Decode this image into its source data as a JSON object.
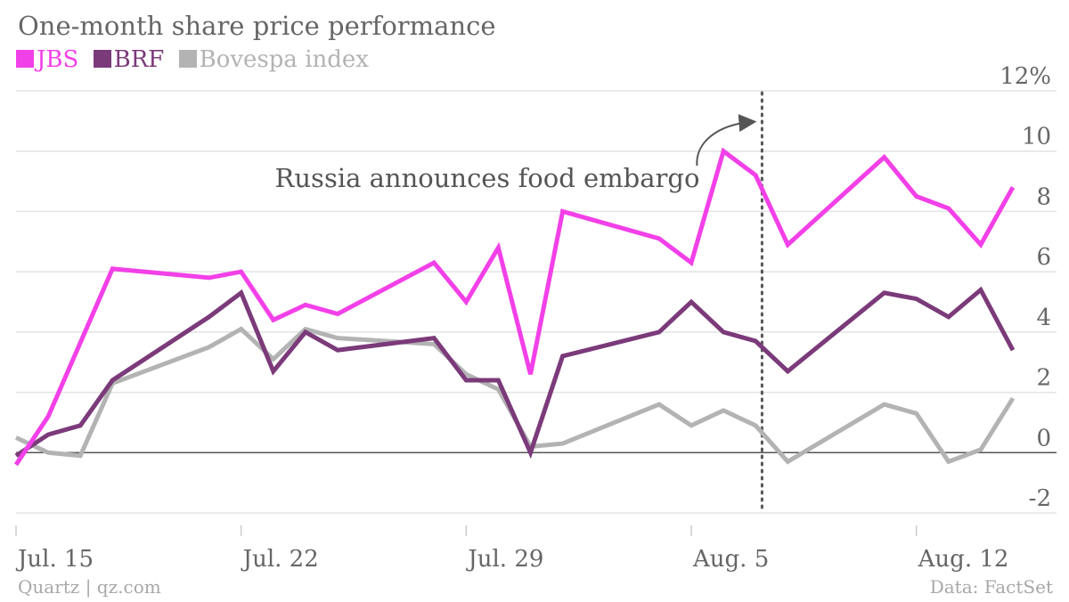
{
  "chart_data": {
    "type": "line",
    "title": "One-month share price performance",
    "y_unit_label": "12%",
    "ylim": [
      -2,
      12
    ],
    "y_ticks": [
      12,
      10,
      8,
      6,
      4,
      2,
      0,
      -2
    ],
    "y_tick_labels": [
      "12%",
      "10",
      "8",
      "6",
      "4",
      "2",
      "0",
      "-2"
    ],
    "x_tick_labels": [
      "Jul. 15",
      "Jul. 22",
      "Jul. 29",
      "Aug. 5",
      "Aug. 12"
    ],
    "x_tick_positions": [
      0,
      7,
      14,
      21,
      28
    ],
    "x_range": [
      0,
      31.5
    ],
    "x_unit": "days from Jul. 15",
    "grid": true,
    "legend_position": "top-left",
    "series": [
      {
        "name": "JBS",
        "color": "#f240e8",
        "x": [
          0,
          1,
          3,
          6,
          7,
          8,
          9,
          10,
          13,
          14,
          15,
          16,
          17,
          20,
          21,
          22,
          23,
          24,
          27,
          28,
          29,
          30,
          31
        ],
        "values": [
          -0.4,
          1.2,
          6.1,
          5.8,
          6.0,
          4.4,
          4.9,
          4.6,
          6.3,
          5.0,
          6.8,
          2.6,
          8.0,
          7.1,
          6.3,
          10.0,
          9.2,
          6.9,
          9.8,
          8.5,
          8.1,
          6.9,
          8.8
        ]
      },
      {
        "name": "BRF",
        "color": "#7b3a7a",
        "x": [
          0,
          1,
          2,
          3,
          6,
          7,
          8,
          9,
          10,
          13,
          14,
          15,
          16,
          17,
          20,
          21,
          22,
          23,
          24,
          27,
          28,
          29,
          30,
          31
        ],
        "values": [
          -0.1,
          0.6,
          0.9,
          2.4,
          4.5,
          5.3,
          2.7,
          4.0,
          3.4,
          3.8,
          2.4,
          2.4,
          0.0,
          3.2,
          4.0,
          5.0,
          4.0,
          3.7,
          2.7,
          5.3,
          5.1,
          4.5,
          5.4,
          3.4
        ]
      },
      {
        "name": "Bovespa index",
        "color": "#b3b3b3",
        "x": [
          0,
          1,
          2,
          3,
          6,
          7,
          8,
          9,
          10,
          13,
          14,
          15,
          16,
          17,
          20,
          21,
          22,
          23,
          24,
          27,
          28,
          29,
          30,
          31
        ],
        "values": [
          0.5,
          0.0,
          -0.1,
          2.3,
          3.5,
          4.1,
          3.1,
          4.1,
          3.8,
          3.6,
          2.6,
          2.1,
          0.2,
          0.3,
          1.6,
          0.9,
          1.4,
          0.9,
          -0.3,
          1.6,
          1.3,
          -0.3,
          0.1,
          1.8
        ]
      }
    ],
    "annotation": {
      "text": "Russia announces food embargo",
      "x": 23.2
    }
  },
  "legend": {
    "items": [
      {
        "label": "JBS",
        "color": "#f240e8"
      },
      {
        "label": "BRF",
        "color": "#7b3a7a"
      },
      {
        "label": "Bovespa index",
        "color": "#b3b3b3"
      }
    ]
  },
  "footer": {
    "source_left": "Quartz | qz.com",
    "source_right": "Data: FactSet"
  },
  "colors": {
    "grid": "#e3e3e3",
    "zero_line": "#555555",
    "text": "#666666",
    "annotation_line": "#555555"
  }
}
